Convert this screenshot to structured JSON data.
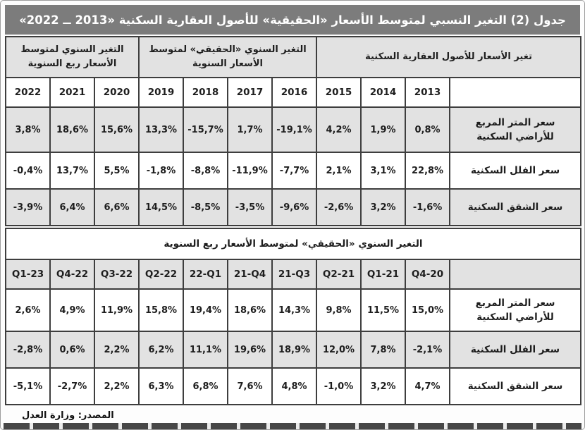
{
  "title": "جدول (2) التغير النسبي لمتوسط الأسعار «الحقيقية» للأصول العقارية السكنية «2013 ــ 2022»",
  "colors": {
    "title_bg": "#7c7c7c",
    "shaded_bg": "#e2e2e2",
    "border": "#3e3e3e",
    "bottom_bar": "#474747"
  },
  "annual_table": {
    "group_headers": [
      {
        "label": "التغير السنوي لمتوسط الأسعار ربع السنوية",
        "span": 3
      },
      {
        "label": "التغير السنوي «الحقيقي» لمتوسط الأسعار السنوية",
        "span": 4
      },
      {
        "label": "تغير الأسعار للأصول العقارية السكنية",
        "span": 4
      }
    ],
    "columns": [
      "2022",
      "2021",
      "2020",
      "2019",
      "2018",
      "2017",
      "2016",
      "2015",
      "2014",
      "2013",
      ""
    ],
    "rows": [
      {
        "label": "سعر المتر المربع للأراضي السكنية",
        "values": [
          "3,8%",
          "18,6%",
          "15,6%",
          "13,3%",
          "-15,7%",
          "1,7%",
          "-19,1%",
          "4,2%",
          "1,9%",
          "0,8%"
        ]
      },
      {
        "label": "سعر الفلل السكنية",
        "values": [
          "-0,4%",
          "13,7%",
          "5,5%",
          "-1,8%",
          "-8,8%",
          "-11,9%",
          "-7,7%",
          "2,1%",
          "3,1%",
          "22,8%"
        ]
      },
      {
        "label": "سعر الشقق السكنية",
        "values": [
          "-3,9%",
          "6,4%",
          "6,6%",
          "14,5%",
          "-8,5%",
          "-3,5%",
          "-9,6%",
          "-2,6%",
          "3,2%",
          "-1,6%"
        ]
      }
    ]
  },
  "quarterly_table": {
    "banner": "التغير السنوي «الحقيقي» لمتوسط الأسعار ربع السنوية",
    "columns": [
      "Q1-23",
      "Q4-22",
      "Q3-22",
      "Q2-22",
      "22-Q1",
      "21-Q4",
      "21-Q3",
      "Q2-21",
      "Q1-21",
      "Q4-20",
      ""
    ],
    "rows": [
      {
        "label": "سعر المتر المربع للأراضي السكنية",
        "values": [
          "2,6%",
          "4,9%",
          "11,9%",
          "15,8%",
          "19,4%",
          "18,6%",
          "14,3%",
          "9,8%",
          "11,5%",
          "15,0%"
        ]
      },
      {
        "label": "سعر الفلل السكنية",
        "values": [
          "-2,8%",
          "0,6%",
          "2,2%",
          "6,2%",
          "11,1%",
          "19,6%",
          "18,9%",
          "12,0%",
          "7,8%",
          "-2,1%"
        ]
      },
      {
        "label": "سعر الشقق السكنية",
        "values": [
          "-5,1%",
          "-2,7%",
          "2,2%",
          "6,3%",
          "6,8%",
          "7,6%",
          "4,8%",
          "-1,0%",
          "3,2%",
          "4,7%"
        ]
      }
    ]
  },
  "footer": {
    "source": "المصدر: وزارة العدل"
  }
}
